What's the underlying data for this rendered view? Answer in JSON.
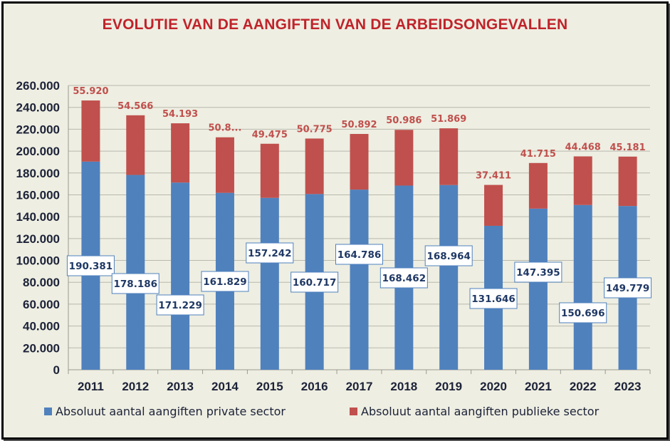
{
  "chart_data": {
    "type": "bar",
    "stacked": true,
    "title": "EVOLUTIE VAN DE AANGIFTEN VAN DE ARBEIDSONGEVALLEN",
    "categories": [
      "2011",
      "2012",
      "2013",
      "2014",
      "2015",
      "2016",
      "2017",
      "2018",
      "2019",
      "2020",
      "2021",
      "2022",
      "2023"
    ],
    "series": [
      {
        "name": "Absoluut aantal aangiften private sector",
        "color": "#4f81bd",
        "values": [
          190381,
          178186,
          171229,
          161829,
          157242,
          160717,
          164786,
          168462,
          168964,
          131646,
          147395,
          150696,
          149779
        ],
        "labels": [
          "190.381",
          "178.186",
          "171.229",
          "161.829",
          "157.242",
          "160.717",
          "164.786",
          "168.462",
          "168.964",
          "131.646",
          "147.395",
          "150.696",
          "149.779"
        ]
      },
      {
        "name": "Absoluut aantal aangiften publieke sector",
        "color": "#c0504d",
        "values": [
          55920,
          54566,
          54193,
          50800,
          49475,
          50775,
          50892,
          50986,
          51869,
          37411,
          41715,
          44468,
          45181
        ],
        "labels": [
          "55.920",
          "54.566",
          "54.193",
          "50.8...",
          "49.475",
          "50.775",
          "50.892",
          "50.986",
          "51.869",
          "37.411",
          "41.715",
          "44.468",
          "45.181"
        ]
      }
    ],
    "ylim": [
      0,
      260000
    ],
    "yticks": [
      0,
      20000,
      40000,
      60000,
      80000,
      100000,
      120000,
      140000,
      160000,
      180000,
      200000,
      220000,
      240000,
      260000
    ],
    "ytick_labels": [
      "0",
      "20.000",
      "40.000",
      "60.000",
      "80.000",
      "100.000",
      "120.000",
      "140.000",
      "160.000",
      "180.000",
      "200.000",
      "220.000",
      "240.000",
      "260.000"
    ],
    "grid": true,
    "legend": "bottom"
  }
}
